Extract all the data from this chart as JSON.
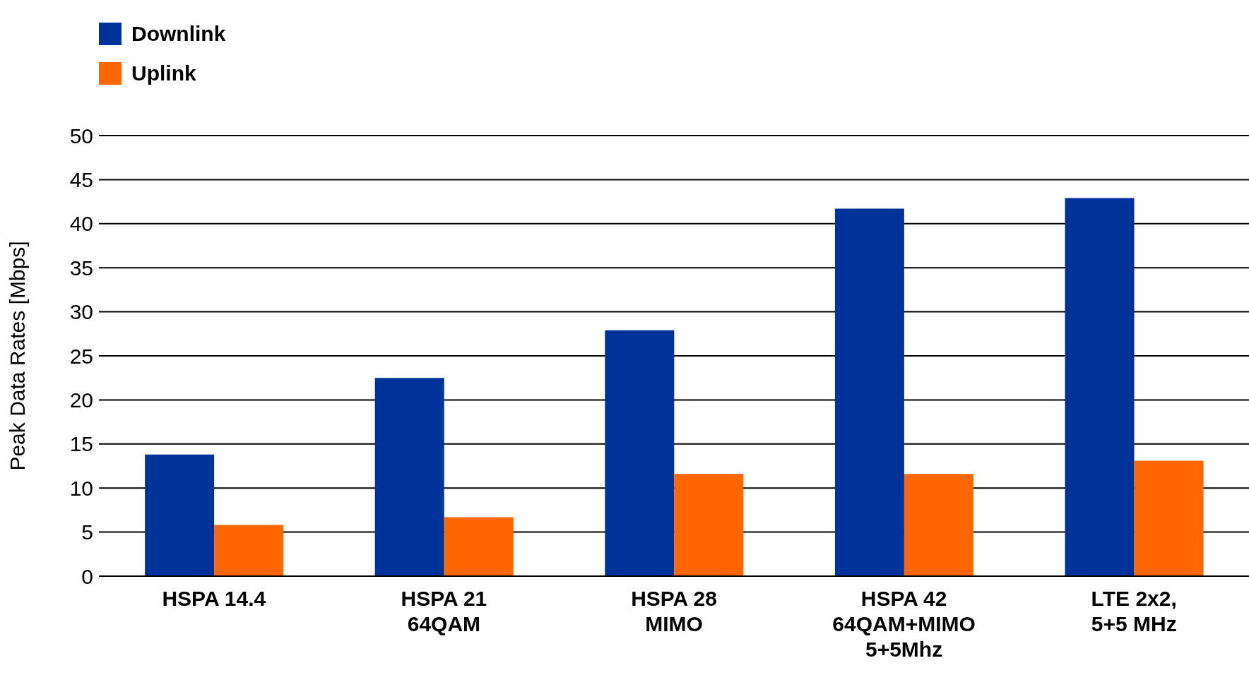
{
  "chart_data": {
    "type": "bar",
    "ylabel": "Peak Data Rates [Mbps]",
    "categories": [
      "HSPA 14.4",
      "HSPA 21\n64QAM",
      "HSPA 28\nMIMO",
      "HSPA 42\n64QAM+MIMO\n5+5Mhz",
      "LTE 2x2,\n5+5 MHz"
    ],
    "series": [
      {
        "name": "Downlink",
        "color": "#003399",
        "values": [
          13.8,
          22.5,
          27.9,
          41.7,
          42.9
        ]
      },
      {
        "name": "Uplink",
        "color": "#ff6600",
        "values": [
          5.8,
          6.7,
          11.6,
          11.6,
          13.1
        ]
      }
    ],
    "ylim": [
      0,
      50
    ],
    "yticks": [
      0,
      5,
      10,
      15,
      20,
      25,
      30,
      35,
      40,
      45,
      50
    ],
    "grid": "y",
    "legend": "top left"
  }
}
